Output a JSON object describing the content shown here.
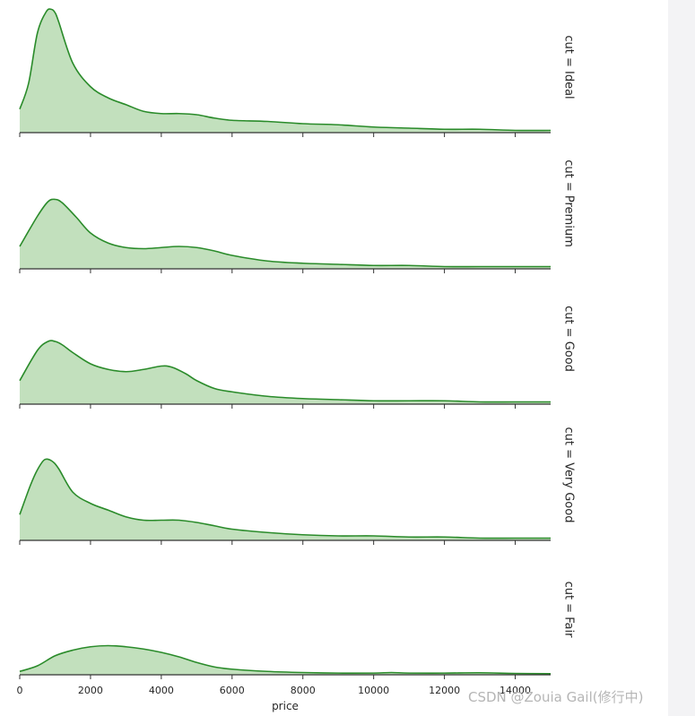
{
  "chart_data": {
    "type": "area",
    "xlabel": "price",
    "xlim": [
      0,
      15000
    ],
    "x_ticks": [
      0,
      2000,
      4000,
      6000,
      8000,
      10000,
      12000,
      14000
    ],
    "x_tick_labels": [
      "0",
      "2000",
      "4000",
      "6000",
      "8000",
      "10000",
      "12000",
      "14000"
    ],
    "grid": false,
    "fill_color": "#c2e0bd",
    "line_color": "#2a8b2a",
    "facets": [
      {
        "label": "cut = Ideal",
        "x": [
          0,
          250,
          500,
          750,
          900,
          1000,
          1100,
          1500,
          2000,
          2500,
          3000,
          3500,
          4000,
          4500,
          5000,
          5500,
          6000,
          7000,
          8000,
          9000,
          10000,
          11000,
          12000,
          13000,
          14000,
          15000
        ],
        "y": [
          0.00021,
          0.00044,
          0.00089,
          0.00108,
          0.0011,
          0.00107,
          0.00099,
          0.00062,
          0.00041,
          0.00031,
          0.00025,
          0.00019,
          0.00017,
          0.00017,
          0.00016,
          0.00013,
          0.00011,
          0.0001,
          8e-05,
          7e-05,
          5e-05,
          4e-05,
          3e-05,
          3e-05,
          2e-05,
          2e-05
        ]
      },
      {
        "label": "cut = Premium",
        "x": [
          0,
          500,
          800,
          1000,
          1200,
          1600,
          2000,
          2500,
          3000,
          3500,
          4000,
          4500,
          5000,
          5500,
          6000,
          7000,
          8000,
          9000,
          10000,
          11000,
          12000,
          13000,
          14000,
          15000
        ],
        "y": [
          0.0002,
          0.00047,
          0.0006,
          0.00062,
          0.00059,
          0.00046,
          0.00032,
          0.00023,
          0.00019,
          0.00018,
          0.00019,
          0.0002,
          0.00019,
          0.00016,
          0.00012,
          7e-05,
          5e-05,
          4e-05,
          3e-05,
          3e-05,
          2e-05,
          2e-05,
          2e-05,
          2e-05
        ]
      },
      {
        "label": "cut = Good",
        "x": [
          0,
          500,
          800,
          1000,
          1200,
          1500,
          2000,
          2500,
          3000,
          3500,
          4000,
          4300,
          4700,
          5000,
          5500,
          6000,
          7000,
          8000,
          9000,
          10000,
          11000,
          12000,
          13000,
          14000,
          15000
        ],
        "y": [
          0.00021,
          0.00048,
          0.00056,
          0.00056,
          0.00053,
          0.00046,
          0.00036,
          0.00031,
          0.00029,
          0.00031,
          0.00034,
          0.00033,
          0.00027,
          0.00021,
          0.00014,
          0.00011,
          7e-05,
          5e-05,
          4e-05,
          3e-05,
          3e-05,
          3e-05,
          2e-05,
          2e-05,
          2e-05
        ]
      },
      {
        "label": "cut = Very Good",
        "x": [
          0,
          300,
          500,
          700,
          900,
          1100,
          1500,
          2000,
          2500,
          3000,
          3500,
          4000,
          4500,
          5000,
          5500,
          6000,
          7000,
          8000,
          9000,
          10000,
          11000,
          12000,
          13000,
          14000,
          15000
        ],
        "y": [
          0.00023,
          0.00049,
          0.00063,
          0.00072,
          0.00071,
          0.00064,
          0.00043,
          0.00033,
          0.00027,
          0.00021,
          0.00018,
          0.00018,
          0.00018,
          0.00016,
          0.00013,
          0.0001,
          7e-05,
          5e-05,
          4e-05,
          4e-05,
          3e-05,
          3e-05,
          2e-05,
          2e-05,
          2e-05
        ]
      },
      {
        "label": "cut = Fair",
        "x": [
          0,
          500,
          1000,
          1500,
          2000,
          2500,
          3000,
          3500,
          4000,
          4500,
          5000,
          5500,
          6000,
          7000,
          8000,
          9000,
          10000,
          10500,
          11000,
          12000,
          13000,
          14000,
          15000
        ],
        "y": [
          3e-05,
          8e-05,
          0.00017,
          0.00022,
          0.00025,
          0.00026,
          0.00025,
          0.00023,
          0.0002,
          0.00016,
          0.00011,
          7e-05,
          5e-05,
          3e-05,
          2e-05,
          1.5e-05,
          1.5e-05,
          2e-05,
          1.5e-05,
          1.5e-05,
          1.8e-05,
          1.2e-05,
          1e-05
        ]
      }
    ]
  },
  "watermark": "CSDN @Zouia  Gail(修行中)"
}
